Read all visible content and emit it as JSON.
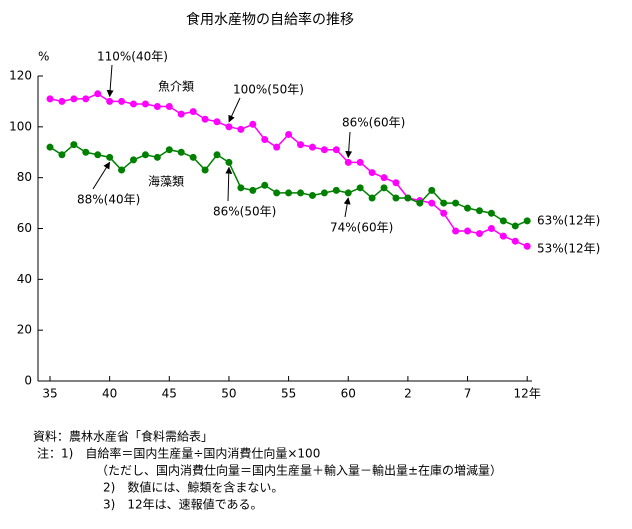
{
  "chart_data": {
    "type": "line",
    "title": "食用水産物の自給率の推移",
    "y_unit": "%",
    "categories": [
      "35",
      null,
      null,
      null,
      null,
      "40",
      null,
      null,
      null,
      null,
      "45",
      null,
      null,
      null,
      null,
      "50",
      null,
      null,
      null,
      null,
      "55",
      null,
      null,
      null,
      null,
      "60",
      null,
      null,
      null,
      null,
      "2",
      null,
      null,
      null,
      null,
      "7",
      null,
      null,
      null,
      null,
      "12年"
    ],
    "series": [
      {
        "name": "魚介類",
        "color": "#ff00ff",
        "values": [
          111,
          110,
          111,
          111,
          113,
          110,
          110,
          109,
          109,
          108,
          108,
          105,
          106,
          103,
          102,
          100,
          99,
          101,
          95,
          92,
          97,
          93,
          92,
          91,
          91,
          86,
          86,
          82,
          80,
          78,
          72,
          71,
          70,
          66,
          59,
          59,
          58,
          60,
          57,
          55,
          53
        ]
      },
      {
        "name": "海藻類",
        "color": "#008000",
        "values": [
          92,
          89,
          93,
          90,
          89,
          88,
          83,
          87,
          89,
          88,
          91,
          90,
          88,
          83,
          89,
          86,
          76,
          75,
          77,
          74,
          74,
          74,
          73,
          74,
          75,
          74,
          76,
          72,
          76,
          72,
          72,
          70,
          75,
          70,
          70,
          68,
          67,
          66,
          63,
          61,
          63
        ]
      }
    ],
    "ylim": [
      0,
      120
    ],
    "yticks": [
      0,
      20,
      40,
      60,
      80,
      100,
      120
    ],
    "annotations": [
      "110%(40年)",
      "100%(50年)",
      "86%(60年)",
      "88%(40年)",
      "86%(50年)",
      "74%(60年)",
      "63%(12年)",
      "53%(12年)"
    ],
    "notes": [
      "資料：農林水産省「食料需給表」",
      "注：1)　自給率＝国内生産量÷国内消費仕向量×100",
      "（ただし、国内消費仕向量＝国内生産量＋輸入量－輸出量±在庫の増減量）",
      "2)　数値には、鯨類を含まない。",
      "3)　12年は、速報値である。"
    ]
  }
}
